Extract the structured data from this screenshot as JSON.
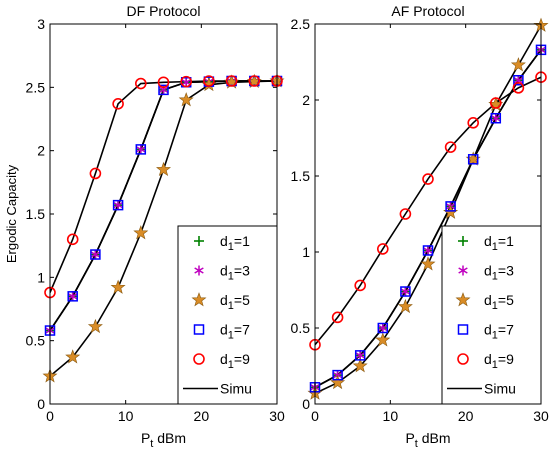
{
  "chart_data": [
    {
      "type": "line",
      "title": "DF Protocol",
      "xlabel": {
        "main": "P",
        "sub": "t",
        "rest": " dBm"
      },
      "ylabel": "Ergodic Capacity",
      "xlim": [
        0,
        30
      ],
      "ylim": [
        0,
        3
      ],
      "xticks": [
        0,
        10,
        20,
        30
      ],
      "yticks": [
        0,
        0.5,
        1,
        1.5,
        2,
        2.5,
        3
      ],
      "grid": false,
      "legend_position": "bottom-right",
      "x": [
        0,
        3,
        6,
        9,
        12,
        15,
        18,
        21,
        24,
        27,
        30
      ],
      "simu_label": "Simu",
      "series": [
        {
          "name": {
            "main": "d",
            "sub": "1",
            "rest": "=1"
          },
          "marker": "plus",
          "color": "#008000",
          "values": [
            0.58,
            0.85,
            1.18,
            1.57,
            2.01,
            2.48,
            2.54,
            2.545,
            2.55,
            2.55,
            2.55
          ]
        },
        {
          "name": {
            "main": "d",
            "sub": "1",
            "rest": "=3"
          },
          "marker": "asterisk",
          "color": "#bf00bf",
          "values": [
            0.58,
            0.85,
            1.18,
            1.57,
            2.01,
            2.48,
            2.54,
            2.545,
            2.55,
            2.55,
            2.55
          ]
        },
        {
          "name": {
            "main": "d",
            "sub": "1",
            "rest": "=5"
          },
          "marker": "star",
          "color": "#d98c26",
          "values": [
            0.22,
            0.37,
            0.61,
            0.92,
            1.35,
            1.85,
            2.4,
            2.52,
            2.54,
            2.545,
            2.55
          ]
        },
        {
          "name": {
            "main": "d",
            "sub": "1",
            "rest": "=7"
          },
          "marker": "square",
          "color": "#0000ff",
          "values": [
            0.58,
            0.85,
            1.18,
            1.57,
            2.01,
            2.48,
            2.54,
            2.545,
            2.55,
            2.55,
            2.55
          ]
        },
        {
          "name": {
            "main": "d",
            "sub": "1",
            "rest": "=9"
          },
          "marker": "circle",
          "color": "#ff0000",
          "values": [
            0.88,
            1.3,
            1.82,
            2.37,
            2.53,
            2.54,
            2.545,
            2.55,
            2.55,
            2.55,
            2.55
          ]
        }
      ]
    },
    {
      "type": "line",
      "title": "AF Protocol",
      "xlabel": {
        "main": "P",
        "sub": "t",
        "rest": " dBm"
      },
      "ylabel": "",
      "xlim": [
        0,
        30
      ],
      "ylim": [
        0,
        2.5
      ],
      "xticks": [
        0,
        10,
        20,
        30
      ],
      "yticks": [
        0,
        0.5,
        1,
        1.5,
        2,
        2.5
      ],
      "grid": false,
      "legend_position": "bottom-right",
      "x": [
        0,
        3,
        6,
        9,
        12,
        15,
        18,
        21,
        24,
        27,
        30
      ],
      "simu_label": "Simu",
      "series": [
        {
          "name": {
            "main": "d",
            "sub": "1",
            "rest": "=1"
          },
          "marker": "plus",
          "color": "#008000",
          "values": [
            0.11,
            0.19,
            0.32,
            0.5,
            0.74,
            1.01,
            1.3,
            1.61,
            1.88,
            2.13,
            2.33
          ]
        },
        {
          "name": {
            "main": "d",
            "sub": "1",
            "rest": "=3"
          },
          "marker": "asterisk",
          "color": "#bf00bf",
          "values": [
            0.11,
            0.19,
            0.32,
            0.5,
            0.74,
            1.01,
            1.3,
            1.61,
            1.88,
            2.13,
            2.33
          ]
        },
        {
          "name": {
            "main": "d",
            "sub": "1",
            "rest": "=5"
          },
          "marker": "star",
          "color": "#d98c26",
          "values": [
            0.07,
            0.14,
            0.25,
            0.42,
            0.64,
            0.92,
            1.26,
            1.61,
            1.97,
            2.23,
            2.49
          ]
        },
        {
          "name": {
            "main": "d",
            "sub": "1",
            "rest": "=7"
          },
          "marker": "square",
          "color": "#0000ff",
          "values": [
            0.11,
            0.19,
            0.32,
            0.5,
            0.74,
            1.01,
            1.3,
            1.61,
            1.88,
            2.13,
            2.33
          ]
        },
        {
          "name": {
            "main": "d",
            "sub": "1",
            "rest": "=9"
          },
          "marker": "circle",
          "color": "#ff0000",
          "values": [
            0.39,
            0.57,
            0.78,
            1.02,
            1.25,
            1.48,
            1.69,
            1.85,
            1.98,
            2.08,
            2.15
          ]
        }
      ]
    }
  ]
}
